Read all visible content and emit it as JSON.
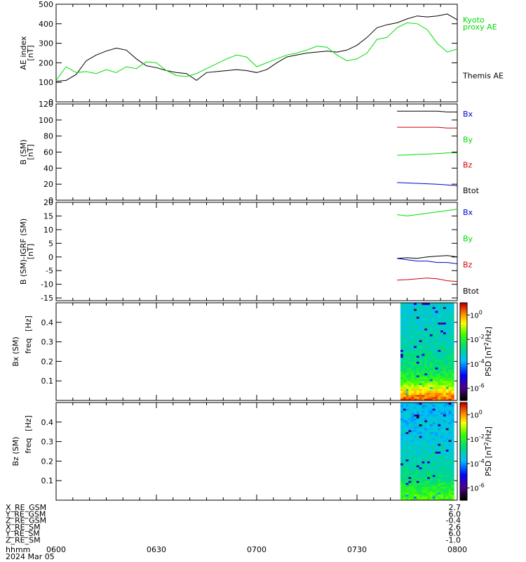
{
  "panels": [
    {
      "id": "ae",
      "ylabel": "AE index",
      "yunit": "[nT]",
      "yticks": [
        "0",
        "100",
        "200",
        "300",
        "400",
        "500"
      ],
      "legend": [
        {
          "text": "Kyoto",
          "color": "#00dd00"
        },
        {
          "text": "proxy AE",
          "color": "#00dd00"
        },
        {
          "text": "Themis AE",
          "color": "#000000"
        }
      ]
    },
    {
      "id": "b_sm",
      "ylabel": "B (SM)",
      "yunit": "[nT]",
      "yticks": [
        "0",
        "20",
        "40",
        "60",
        "80",
        "100",
        "120"
      ],
      "legend": [
        {
          "text": "Bx",
          "color": "#0000cc"
        },
        {
          "text": "By",
          "color": "#00dd00"
        },
        {
          "text": "Bz",
          "color": "#cc0000"
        },
        {
          "text": "Btot",
          "color": "#000000"
        }
      ]
    },
    {
      "id": "b_igrf",
      "ylabel": "B (SM)-IGRF (SM)",
      "yunit": "[nT]",
      "yticks": [
        "-15",
        "-10",
        "-5",
        "0",
        "5",
        "10",
        "15",
        "20"
      ],
      "legend": [
        {
          "text": "Bx",
          "color": "#0000cc"
        },
        {
          "text": "By",
          "color": "#00dd00"
        },
        {
          "text": "Bz",
          "color": "#cc0000"
        },
        {
          "text": "Btot",
          "color": "#000000"
        }
      ]
    },
    {
      "id": "bx_spec",
      "ylabel1": "Bx (SM)",
      "ylabel2": "freq",
      "yunit": "[Hz]",
      "yticks": [
        "0.1",
        "0.2",
        "0.3",
        "0.4"
      ],
      "cbar_label": "PSD [nT",
      "cbar_label_sup": "2",
      "cbar_label_end": "/Hz]",
      "cbar_ticks": [
        {
          "base": "10",
          "exp": "0"
        },
        {
          "base": "10",
          "exp": "-2"
        },
        {
          "base": "10",
          "exp": "-4"
        },
        {
          "base": "10",
          "exp": "-6"
        }
      ]
    },
    {
      "id": "bz_spec",
      "ylabel1": "Bz (SM)",
      "ylabel2": "freq",
      "yunit": "[Hz]",
      "yticks": [
        "0.1",
        "0.2",
        "0.3",
        "0.4"
      ],
      "cbar_label": "PSD [nT",
      "cbar_label_sup": "2",
      "cbar_label_end": "/Hz]",
      "cbar_ticks": [
        {
          "base": "10",
          "exp": "0"
        },
        {
          "base": "10",
          "exp": "-2"
        },
        {
          "base": "10",
          "exp": "-4"
        },
        {
          "base": "10",
          "exp": "-6"
        }
      ]
    }
  ],
  "xaxis": {
    "ticks": [
      "0600",
      "0630",
      "0700",
      "0730",
      "0800"
    ],
    "row_label": "hhmm",
    "date": "2024 Mar 05"
  },
  "position_rows": [
    {
      "label": "X_RE_GSM",
      "value": "2.7"
    },
    {
      "label": "Y_RE_GSM",
      "value": "6.0"
    },
    {
      "label": "Z_RE_GSM",
      "value": "-0.4"
    },
    {
      "label": "X_RE_SM",
      "value": "2.6"
    },
    {
      "label": "Y_RE_SM",
      "value": "6.0"
    },
    {
      "label": "Z_RE_SM",
      "value": "-1.0"
    }
  ],
  "chart_data": [
    {
      "type": "line",
      "panel": "ae",
      "xunit": "minutes after 06:00 UT",
      "xlim": [
        0,
        120
      ],
      "ylim": [
        0,
        500
      ],
      "series": [
        {
          "name": "Themis AE",
          "color": "#000000",
          "x": [
            0,
            3,
            6,
            9,
            12,
            15,
            18,
            21,
            24,
            27,
            30,
            33,
            36,
            39,
            42,
            45,
            48,
            51,
            54,
            57,
            60,
            63,
            66,
            69,
            72,
            75,
            78,
            81,
            84,
            87,
            90,
            93,
            96,
            99,
            102,
            105,
            108,
            111,
            114,
            117,
            120
          ],
          "y": [
            105,
            110,
            140,
            210,
            240,
            260,
            275,
            265,
            220,
            185,
            175,
            160,
            150,
            145,
            110,
            150,
            155,
            160,
            165,
            160,
            150,
            165,
            200,
            230,
            240,
            250,
            255,
            260,
            255,
            265,
            290,
            330,
            380,
            395,
            405,
            425,
            440,
            435,
            440,
            450,
            420
          ]
        },
        {
          "name": "Kyoto proxy AE",
          "color": "#00dd00",
          "x": [
            120,
            117,
            114,
            111,
            108,
            105,
            102,
            99,
            96,
            93,
            90,
            87,
            84,
            81,
            78,
            75,
            72,
            69,
            66,
            63,
            60,
            57,
            54,
            51,
            48,
            45,
            42,
            39,
            36,
            33,
            30,
            27,
            24,
            21,
            18,
            15,
            12,
            9,
            6,
            3,
            0
          ],
          "y": [
            270,
            255,
            300,
            370,
            400,
            405,
            380,
            330,
            320,
            250,
            220,
            210,
            240,
            280,
            285,
            265,
            250,
            240,
            220,
            200,
            180,
            230,
            240,
            220,
            195,
            170,
            145,
            130,
            135,
            160,
            200,
            205,
            170,
            180,
            150,
            165,
            145,
            155,
            150,
            180,
            110
          ]
        }
      ]
    },
    {
      "type": "line",
      "panel": "b_sm",
      "xunit": "minutes after 06:00 UT",
      "xlim": [
        0,
        120
      ],
      "ylim": [
        0,
        120
      ],
      "series": [
        {
          "name": "Btot",
          "color": "#000000",
          "x": [
            102,
            108,
            114,
            117,
            120
          ],
          "y": [
            111,
            111,
            111,
            110,
            110
          ]
        },
        {
          "name": "Bz",
          "color": "#cc0000",
          "x": [
            102,
            108,
            114,
            117,
            120
          ],
          "y": [
            91,
            91,
            91,
            90,
            90
          ]
        },
        {
          "name": "By",
          "color": "#00dd00",
          "x": [
            102,
            108,
            114,
            117,
            120
          ],
          "y": [
            56,
            57,
            58,
            59,
            59
          ]
        },
        {
          "name": "Bx",
          "color": "#0000cc",
          "x": [
            102,
            108,
            114,
            117,
            120
          ],
          "y": [
            22,
            21,
            20,
            19,
            18
          ]
        }
      ]
    },
    {
      "type": "line",
      "panel": "b_igrf",
      "xunit": "minutes after 06:00 UT",
      "xlim": [
        0,
        120
      ],
      "ylim": [
        -16,
        20
      ],
      "series": [
        {
          "name": "By",
          "color": "#00dd00",
          "x": [
            102,
            105,
            108,
            111,
            114,
            117,
            120
          ],
          "y": [
            15.5,
            15,
            15.5,
            16,
            16.5,
            17,
            17.5
          ]
        },
        {
          "name": "Btot",
          "color": "#000000",
          "x": [
            102,
            105,
            108,
            111,
            114,
            117,
            120
          ],
          "y": [
            -0.5,
            -0.3,
            -0.5,
            0,
            0.3,
            0.5,
            0
          ]
        },
        {
          "name": "Bx",
          "color": "#0000cc",
          "x": [
            102,
            105,
            108,
            111,
            114,
            117,
            120
          ],
          "y": [
            -0.5,
            -1,
            -1.5,
            -1.5,
            -2,
            -2,
            -2.5
          ]
        },
        {
          "name": "Bz",
          "color": "#cc0000",
          "x": [
            102,
            105,
            108,
            111,
            114,
            117,
            120
          ],
          "y": [
            -8.5,
            -8.3,
            -8,
            -7.7,
            -8,
            -8.7,
            -9
          ]
        }
      ]
    },
    {
      "type": "heatmap",
      "panel": "bx_spec",
      "xunit": "minutes after 06:00 UT",
      "xlim": [
        0,
        120
      ],
      "ylim": [
        0,
        0.5
      ],
      "color_scale": "log10 PSD",
      "crange": [
        -7,
        1
      ],
      "data_xrange": [
        103,
        119
      ],
      "freq_levels": [
        0.0,
        0.05,
        0.1,
        0.15,
        0.2,
        0.25,
        0.3,
        0.35,
        0.4,
        0.45,
        0.5
      ],
      "log_psd_by_freq": [
        0.5,
        -0.5,
        -1.8,
        -2.4,
        -2.7,
        -2.9,
        -3.1,
        -3.2,
        -3.3,
        -3.4,
        -3.4
      ]
    },
    {
      "type": "heatmap",
      "panel": "bz_spec",
      "xunit": "minutes after 06:00 UT",
      "xlim": [
        0,
        120
      ],
      "ylim": [
        0,
        0.5
      ],
      "color_scale": "log10 PSD",
      "crange": [
        -7,
        1
      ],
      "data_xrange": [
        103,
        119
      ],
      "freq_levels": [
        0.0,
        0.05,
        0.1,
        0.15,
        0.2,
        0.25,
        0.3,
        0.35,
        0.4,
        0.45,
        0.5
      ],
      "log_psd_by_freq": [
        -1.5,
        -2.0,
        -2.5,
        -2.9,
        -3.1,
        -3.3,
        -3.5,
        -3.6,
        -3.7,
        -3.7,
        -3.7
      ]
    }
  ]
}
